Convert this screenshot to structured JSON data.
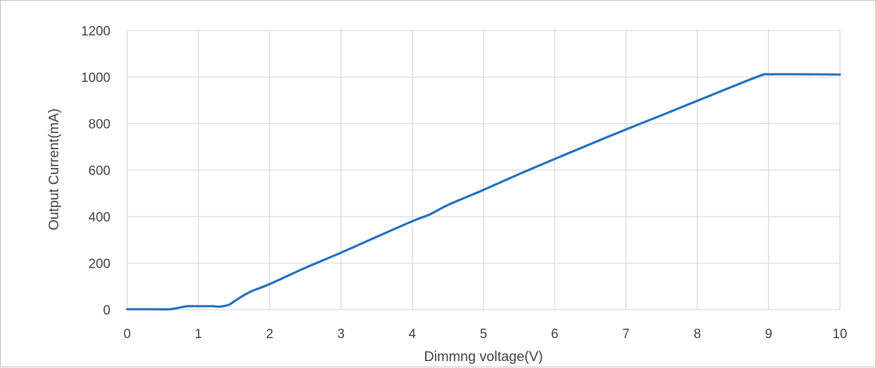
{
  "chart_data": {
    "type": "line",
    "title": "",
    "xlabel": "Dimmng voltage(V)",
    "ylabel": "Output Current(mA)",
    "xlim": [
      0,
      10
    ],
    "ylim": [
      0,
      1200
    ],
    "x_ticks": [
      "0",
      "1",
      "2",
      "3",
      "4",
      "5",
      "6",
      "7",
      "8",
      "9",
      "10"
    ],
    "y_ticks": [
      "0",
      "200",
      "400",
      "600",
      "800",
      "1000",
      "1200"
    ],
    "grid": true,
    "legend": "none",
    "series": [
      {
        "color": "#1f6fbf",
        "x": [
          0,
          0.3,
          0.6,
          0.75,
          0.85,
          1.0,
          1.2,
          1.3,
          1.42,
          1.5,
          1.6,
          1.75,
          2.0,
          2.5,
          3.0,
          3.5,
          4.0,
          4.25,
          4.5,
          5.0,
          5.5,
          6.0,
          6.5,
          7.0,
          7.5,
          8.0,
          8.5,
          8.9,
          9.0,
          9.5,
          10.0
        ],
        "y": [
          2,
          2,
          2,
          10,
          15,
          15,
          15,
          13,
          20,
          35,
          55,
          80,
          110,
          180,
          245,
          313,
          380,
          410,
          450,
          515,
          583,
          648,
          712,
          775,
          836,
          898,
          960,
          1008,
          1012,
          1012,
          1011
        ]
      }
    ]
  }
}
